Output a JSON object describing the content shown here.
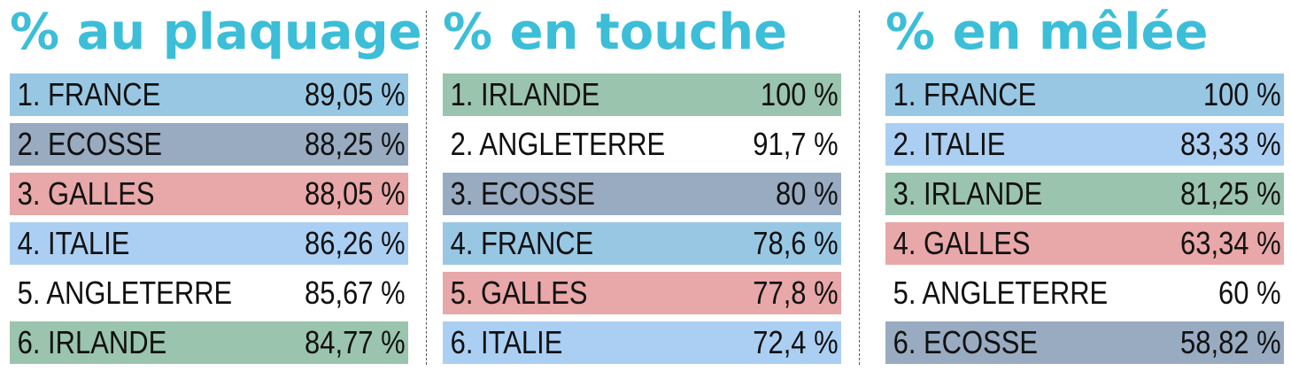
{
  "colors": {
    "title": "#3cbed8",
    "FRANCE": "#98c7e4",
    "ECOSSE": "#98abc1",
    "GALLES": "#e8a7a8",
    "ITALIE": "#abcff3",
    "ANGLETERRE": "#ffffff",
    "IRLANDE": "#9ac4ad"
  },
  "chart_data": [
    {
      "type": "table",
      "title": "% au plaquage",
      "rows": [
        {
          "label": "1. FRANCE",
          "team": "FRANCE",
          "value": "89,05 %"
        },
        {
          "label": "2. ECOSSE",
          "team": "ECOSSE",
          "value": "88,25 %"
        },
        {
          "label": "3. GALLES",
          "team": "GALLES",
          "value": "88,05 %"
        },
        {
          "label": "4. ITALIE",
          "team": "ITALIE",
          "value": "86,26 %"
        },
        {
          "label": "5. ANGLETERRE",
          "team": "ANGLETERRE",
          "value": "85,67 %"
        },
        {
          "label": "6. IRLANDE",
          "team": "IRLANDE",
          "value": "84,77 %"
        }
      ]
    },
    {
      "type": "table",
      "title": "% en touche",
      "rows": [
        {
          "label": "1. IRLANDE",
          "team": "IRLANDE",
          "value": "100 %"
        },
        {
          "label": "2. ANGLETERRE",
          "team": "ANGLETERRE",
          "value": "91,7 %"
        },
        {
          "label": "3. ECOSSE",
          "team": "ECOSSE",
          "value": "80 %"
        },
        {
          "label": "4. FRANCE",
          "team": "FRANCE",
          "value": "78,6 %"
        },
        {
          "label": "5. GALLES",
          "team": "GALLES",
          "value": "77,8 %"
        },
        {
          "label": "6. ITALIE",
          "team": "ITALIE",
          "value": "72,4 %"
        }
      ]
    },
    {
      "type": "table",
      "title": "% en mêlée",
      "rows": [
        {
          "label": "1. FRANCE",
          "team": "FRANCE",
          "value": "100 %"
        },
        {
          "label": "2. ITALIE",
          "team": "ITALIE",
          "value": "83,33 %"
        },
        {
          "label": "3. IRLANDE",
          "team": "IRLANDE",
          "value": "81,25 %"
        },
        {
          "label": "4. GALLES",
          "team": "GALLES",
          "value": "63,34 %"
        },
        {
          "label": "5. ANGLETERRE",
          "team": "ANGLETERRE",
          "value": "60 %"
        },
        {
          "label": "6. ECOSSE",
          "team": "ECOSSE",
          "value": "58,82 %"
        }
      ]
    }
  ]
}
